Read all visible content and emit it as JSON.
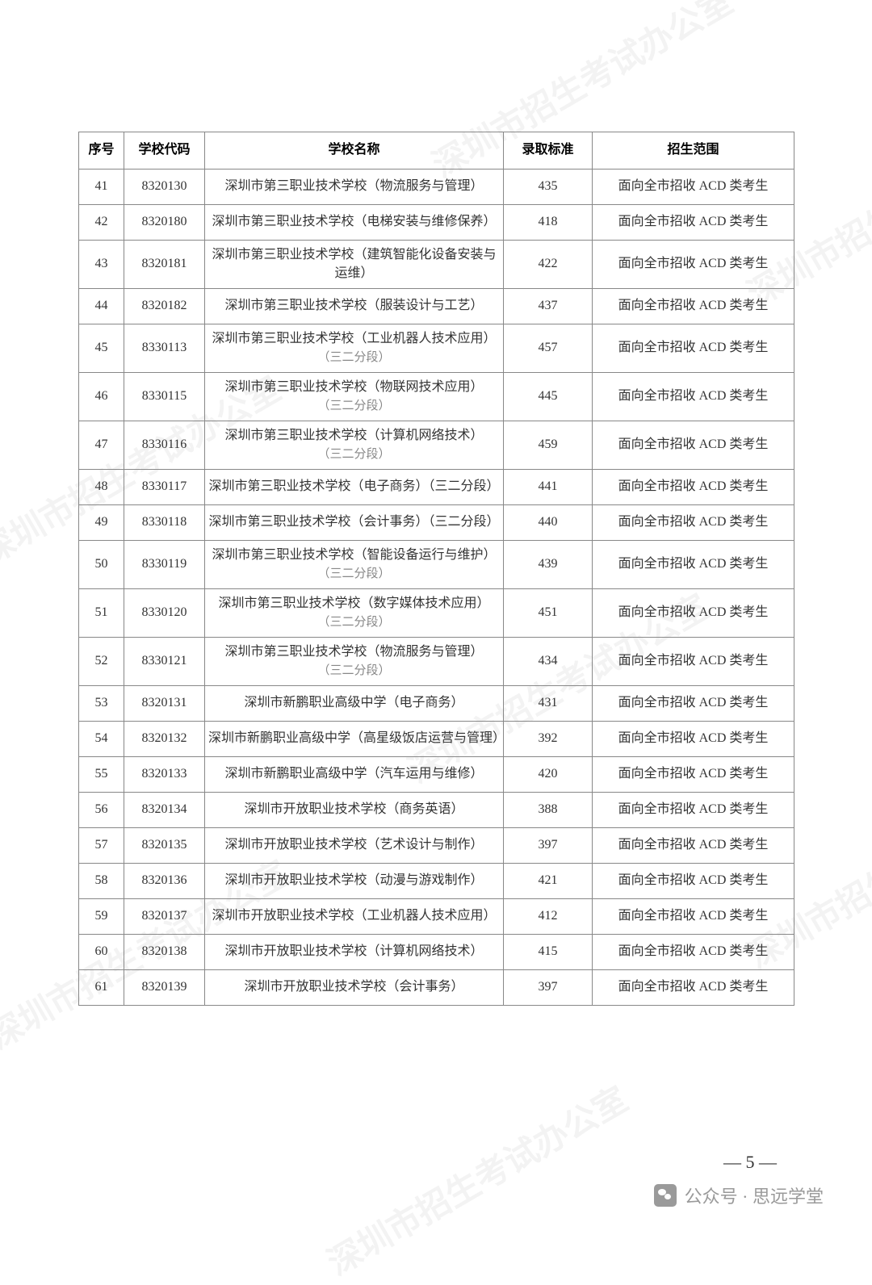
{
  "watermarks": {
    "text": "深圳市招生考试办公室"
  },
  "table": {
    "headers": {
      "seq": "序号",
      "code": "学校代码",
      "name": "学校名称",
      "score": "录取标准",
      "scope": "招生范围"
    },
    "col_widths": [
      "56px",
      "100px",
      "370px",
      "110px",
      "250px"
    ],
    "border_color": "#888888",
    "header_fontsize": 16,
    "cell_fontsize": 16,
    "sub_color": "#888888",
    "rows": [
      {
        "seq": "41",
        "code": "8320130",
        "name": "深圳市第三职业技术学校（物流服务与管理）",
        "sub": "",
        "score": "435",
        "scope": "面向全市招收 ACD 类考生",
        "tall": false
      },
      {
        "seq": "42",
        "code": "8320180",
        "name": "深圳市第三职业技术学校（电梯安装与维修保养）",
        "sub": "",
        "score": "418",
        "scope": "面向全市招收 ACD 类考生",
        "tall": false
      },
      {
        "seq": "43",
        "code": "8320181",
        "name": "深圳市第三职业技术学校（建筑智能化设备安装与运维）",
        "sub": "",
        "score": "422",
        "scope": "面向全市招收 ACD 类考生",
        "tall": true
      },
      {
        "seq": "44",
        "code": "8320182",
        "name": "深圳市第三职业技术学校（服装设计与工艺）",
        "sub": "",
        "score": "437",
        "scope": "面向全市招收 ACD 类考生",
        "tall": false
      },
      {
        "seq": "45",
        "code": "8330113",
        "name": "深圳市第三职业技术学校（工业机器人技术应用）",
        "sub": "（三二分段）",
        "score": "457",
        "scope": "面向全市招收 ACD 类考生",
        "tall": true
      },
      {
        "seq": "46",
        "code": "8330115",
        "name": "深圳市第三职业技术学校（物联网技术应用）",
        "sub": "（三二分段）",
        "score": "445",
        "scope": "面向全市招收 ACD 类考生",
        "tall": true
      },
      {
        "seq": "47",
        "code": "8330116",
        "name": "深圳市第三职业技术学校（计算机网络技术）",
        "sub": "（三二分段）",
        "score": "459",
        "scope": "面向全市招收 ACD 类考生",
        "tall": true
      },
      {
        "seq": "48",
        "code": "8330117",
        "name": "深圳市第三职业技术学校（电子商务）（三二分段）",
        "sub": "",
        "score": "441",
        "scope": "面向全市招收 ACD 类考生",
        "tall": false
      },
      {
        "seq": "49",
        "code": "8330118",
        "name": "深圳市第三职业技术学校（会计事务）（三二分段）",
        "sub": "",
        "score": "440",
        "scope": "面向全市招收 ACD 类考生",
        "tall": false
      },
      {
        "seq": "50",
        "code": "8330119",
        "name": "深圳市第三职业技术学校（智能设备运行与维护）",
        "sub": "（三二分段）",
        "score": "439",
        "scope": "面向全市招收 ACD 类考生",
        "tall": true
      },
      {
        "seq": "51",
        "code": "8330120",
        "name": "深圳市第三职业技术学校（数字媒体技术应用）",
        "sub": "（三二分段）",
        "score": "451",
        "scope": "面向全市招收 ACD 类考生",
        "tall": true
      },
      {
        "seq": "52",
        "code": "8330121",
        "name": "深圳市第三职业技术学校（物流服务与管理）",
        "sub": "（三二分段）",
        "score": "434",
        "scope": "面向全市招收 ACD 类考生",
        "tall": true
      },
      {
        "seq": "53",
        "code": "8320131",
        "name": "深圳市新鹏职业高级中学（电子商务）",
        "sub": "",
        "score": "431",
        "scope": "面向全市招收 ACD 类考生",
        "tall": false
      },
      {
        "seq": "54",
        "code": "8320132",
        "name": "深圳市新鹏职业高级中学（高星级饭店运营与管理）",
        "sub": "",
        "score": "392",
        "scope": "面向全市招收 ACD 类考生",
        "tall": false
      },
      {
        "seq": "55",
        "code": "8320133",
        "name": "深圳市新鹏职业高级中学（汽车运用与维修）",
        "sub": "",
        "score": "420",
        "scope": "面向全市招收 ACD 类考生",
        "tall": false
      },
      {
        "seq": "56",
        "code": "8320134",
        "name": "深圳市开放职业技术学校（商务英语）",
        "sub": "",
        "score": "388",
        "scope": "面向全市招收 ACD 类考生",
        "tall": false
      },
      {
        "seq": "57",
        "code": "8320135",
        "name": "深圳市开放职业技术学校（艺术设计与制作）",
        "sub": "",
        "score": "397",
        "scope": "面向全市招收 ACD 类考生",
        "tall": false
      },
      {
        "seq": "58",
        "code": "8320136",
        "name": "深圳市开放职业技术学校（动漫与游戏制作）",
        "sub": "",
        "score": "421",
        "scope": "面向全市招收 ACD 类考生",
        "tall": false
      },
      {
        "seq": "59",
        "code": "8320137",
        "name": "深圳市开放职业技术学校（工业机器人技术应用）",
        "sub": "",
        "score": "412",
        "scope": "面向全市招收 ACD 类考生",
        "tall": false
      },
      {
        "seq": "60",
        "code": "8320138",
        "name": "深圳市开放职业技术学校（计算机网络技术）",
        "sub": "",
        "score": "415",
        "scope": "面向全市招收 ACD 类考生",
        "tall": false
      },
      {
        "seq": "61",
        "code": "8320139",
        "name": "深圳市开放职业技术学校（会计事务）",
        "sub": "",
        "score": "397",
        "scope": "面向全市招收 ACD 类考生",
        "tall": false
      }
    ]
  },
  "page_number": "— 5 —",
  "footer": {
    "icon": "wechat-icon",
    "text": "公众号 · 思远学堂"
  }
}
